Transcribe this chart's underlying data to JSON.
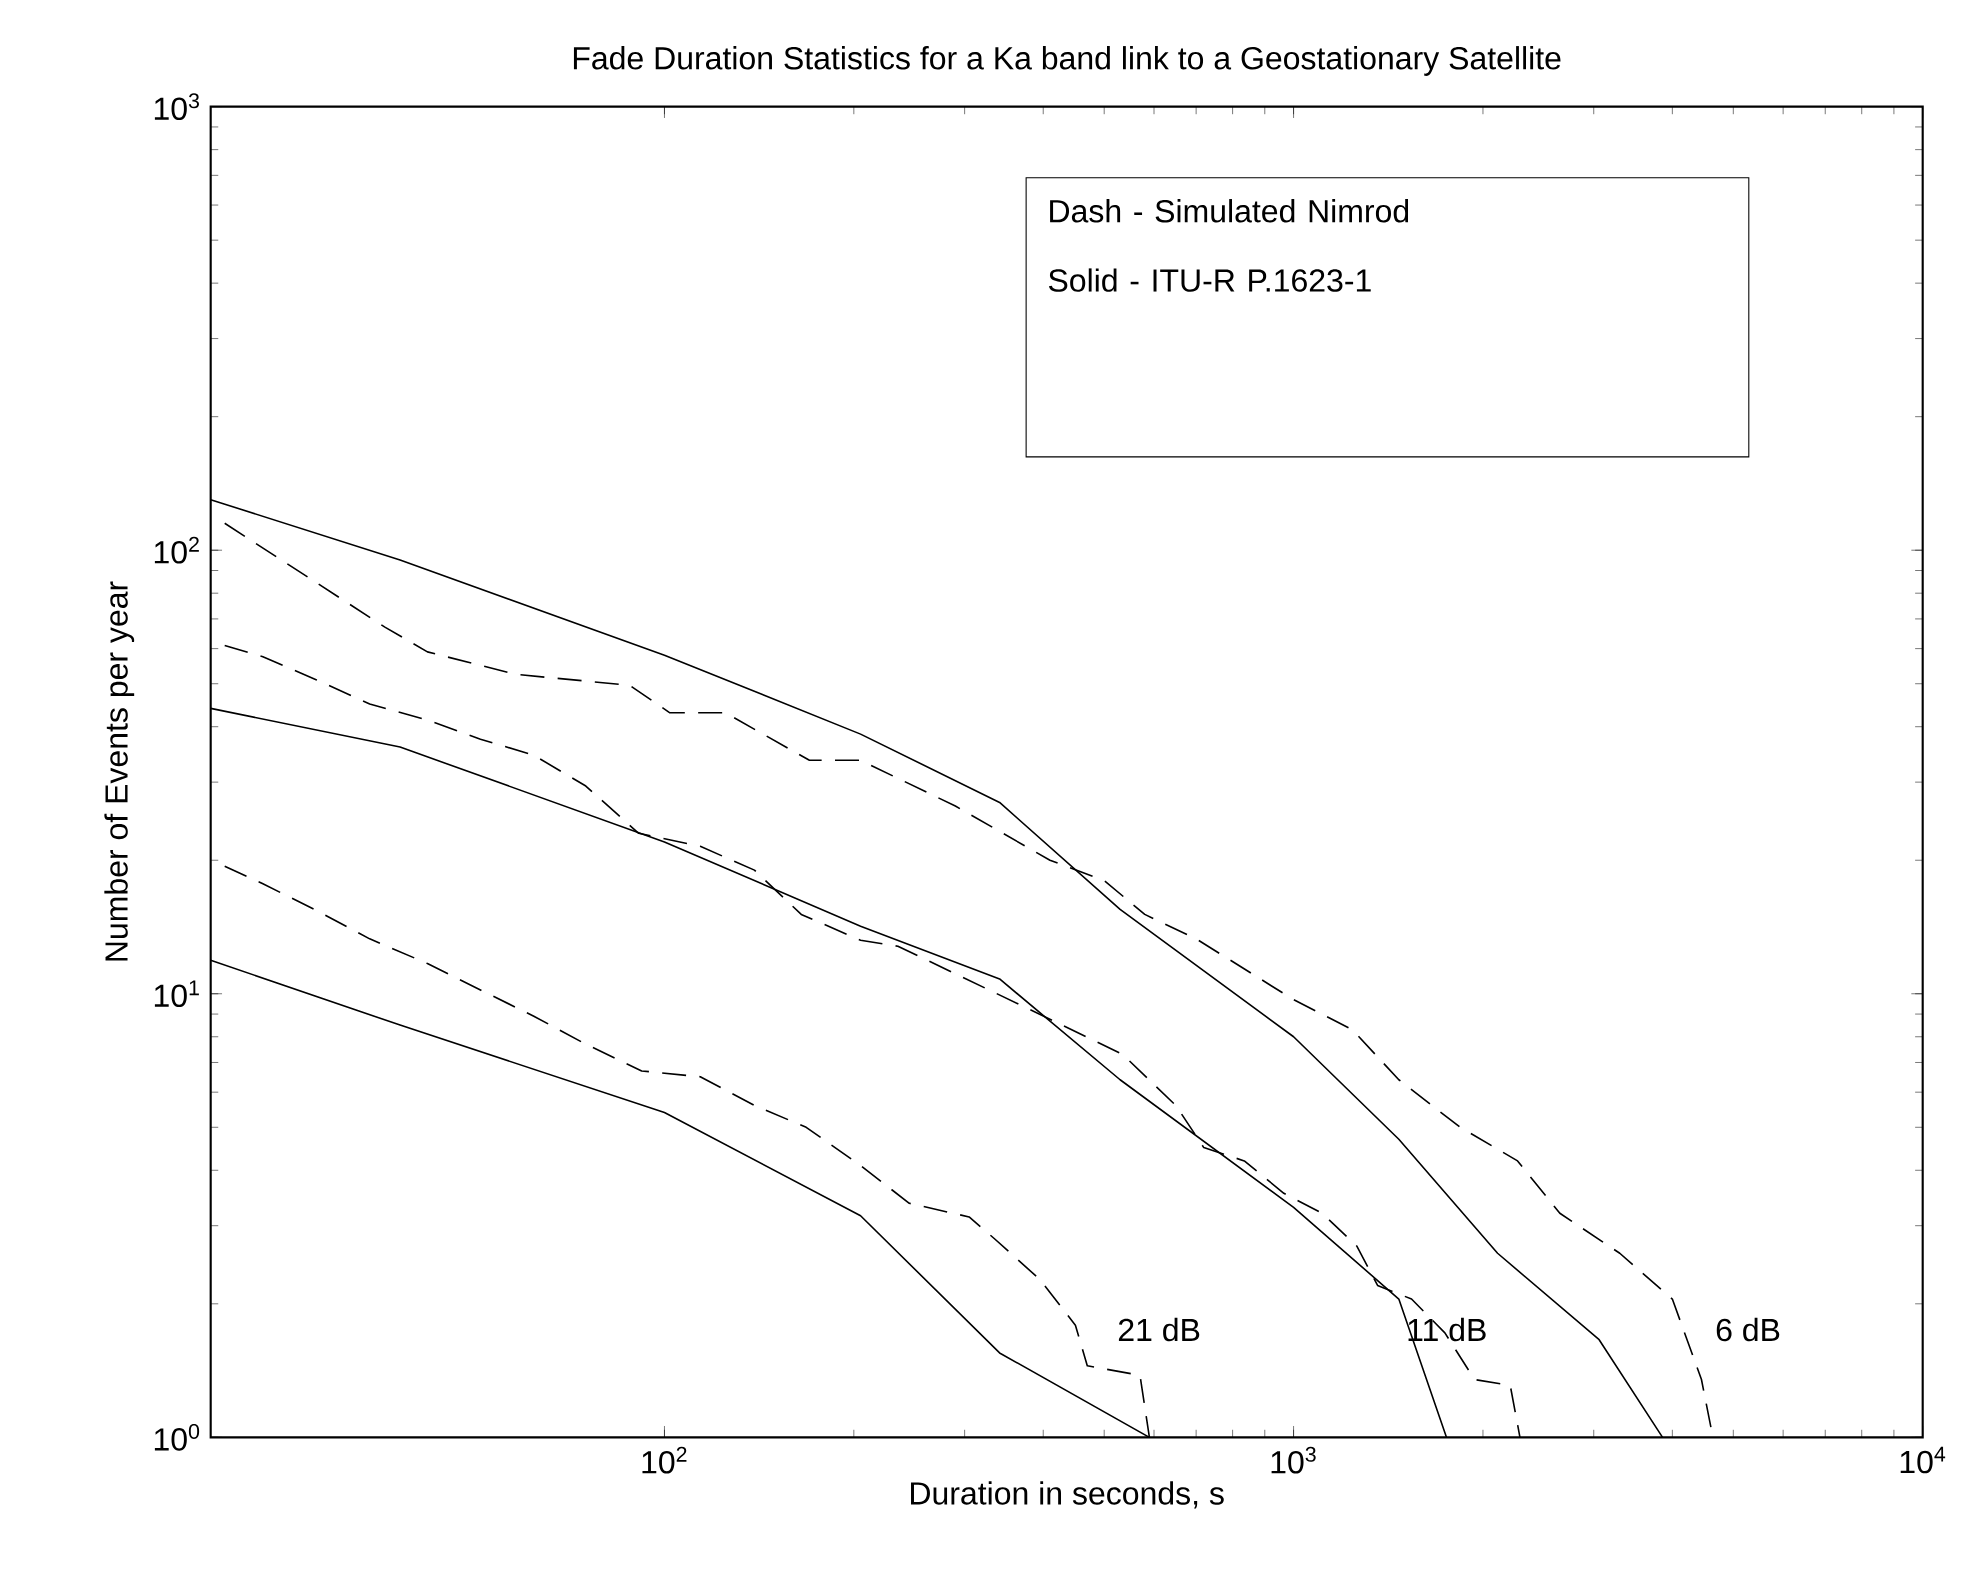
{
  "chart_data": {
    "type": "line",
    "title": "Fade Duration Statistics for a Ka band link to a Geostationary Satellite",
    "xlabel": "Duration in seconds, s",
    "ylabel": "Number of Events per year",
    "log": "xy",
    "xlim": [
      19,
      10000
    ],
    "ylim": [
      1,
      1000
    ],
    "xticks": [
      {
        "value": 100,
        "label": "10$^{2}$"
      },
      {
        "value": 1000,
        "label": "10$^{3}$"
      },
      {
        "value": 10000,
        "label": "10$^{4}$"
      }
    ],
    "yticks": [
      {
        "value": 1,
        "label": "10$^{0}$"
      },
      {
        "value": 10,
        "label": "10$^{1}$"
      },
      {
        "value": 100,
        "label": "10$^{2}$"
      },
      {
        "value": 1000,
        "label": "10$^{3}$"
      }
    ],
    "marker": "none",
    "series": [
      {
        "color": "#000000",
        "line_style": "solid",
        "x": [
          19,
          38,
          100,
          205,
          341,
          530,
          1000,
          1470,
          2110,
          3060,
          3860
        ],
        "values": [
          130,
          95,
          58,
          38.5,
          27,
          15.5,
          8.0,
          4.7,
          2.6,
          1.66,
          1
        ]
      },
      {
        "color": "#000000",
        "line_style": "solid",
        "x": [
          19,
          38,
          100,
          205,
          341,
          530,
          1000,
          1470,
          1750
        ],
        "values": [
          44,
          36,
          22,
          14.2,
          10.8,
          6.4,
          3.3,
          2.05,
          1
        ]
      },
      {
        "color": "#000000",
        "line_style": "solid",
        "x": [
          19,
          38,
          100,
          205,
          341,
          590
        ],
        "values": [
          11.9,
          8.5,
          5.4,
          3.16,
          1.55,
          1
        ]
      },
      {
        "color": "#000000",
        "line_style": "dashed",
        "x": [
          20,
          36,
          42,
          58,
          88,
          102,
          125,
          170,
          205,
          290,
          410,
          500,
          580,
          700,
          1000,
          1240,
          1470,
          1840,
          2270,
          2650,
          3300,
          4000,
          4450,
          4640
        ],
        "values": [
          115,
          67,
          59,
          52.5,
          49.6,
          43,
          43,
          33.6,
          33.6,
          26.5,
          20,
          18,
          15.1,
          13.3,
          9.7,
          8.3,
          6.4,
          5.0,
          4.2,
          3.2,
          2.6,
          2.05,
          1.35,
          1
        ]
      },
      {
        "color": "#000000",
        "line_style": "dashed",
        "x": [
          20,
          23,
          28,
          34,
          42,
          51,
          62,
          75,
          91,
          114,
          139,
          165,
          205,
          235,
          370,
          535,
          650,
          720,
          835,
          965,
          1110,
          1260,
          1360,
          1540,
          1740,
          1940,
          2210,
          2290
        ],
        "values": [
          61,
          57.5,
          51,
          45,
          41.4,
          37.5,
          34.5,
          29.4,
          23,
          21.5,
          19,
          15.1,
          13.2,
          12.8,
          9.4,
          7.3,
          5.6,
          4.5,
          4.2,
          3.55,
          3.2,
          2.7,
          2.2,
          2.05,
          1.72,
          1.35,
          1.31,
          1
        ]
      },
      {
        "color": "#000000",
        "line_style": "dashed",
        "x": [
          20,
          23,
          28,
          34,
          42,
          51,
          62,
          75,
          92,
          114,
          139,
          168,
          205,
          245,
          305,
          335,
          395,
          450,
          470,
          570,
          590
        ],
        "values": [
          19.4,
          17.7,
          15.4,
          13.3,
          11.7,
          10.2,
          8.9,
          7.7,
          6.7,
          6.5,
          5.6,
          5.0,
          4.1,
          3.37,
          3.14,
          2.8,
          2.27,
          1.79,
          1.45,
          1.38,
          1
        ]
      }
    ],
    "annotations": [
      "Dash - Simulated Nimrod",
      "Solid - ITU-R P.1623-1",
      "21 dB",
      "11 dB",
      "6 dB"
    ]
  }
}
